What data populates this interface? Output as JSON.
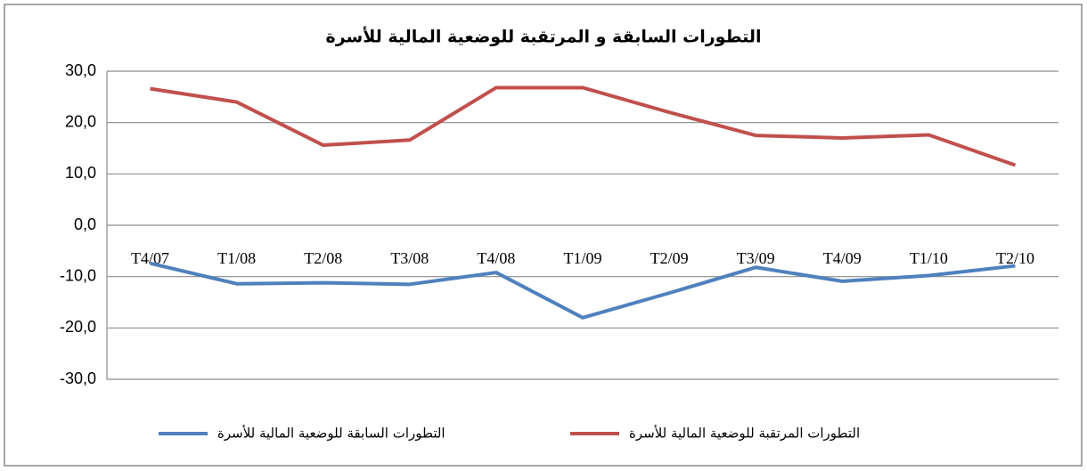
{
  "chart_data": {
    "type": "line",
    "title": "التطورات السابقة و المرتقبة للوضعية المالية للأسرة",
    "categories": [
      "T4/07",
      "T1/08",
      "T2/08",
      "T3/08",
      "T4/08",
      "T1/09",
      "T2/09",
      "T3/09",
      "T4/09",
      "T1/10",
      "T2/10"
    ],
    "series": [
      {
        "name": "التطورات السابقة للوضعية المالية للأسرة",
        "color": "#4f81bd",
        "values": [
          -7.4,
          -11.4,
          -11.2,
          -11.5,
          -9.2,
          -18.0,
          -13.2,
          -8.2,
          -10.9,
          -9.8,
          -7.9
        ]
      },
      {
        "name": "التطورات المرتقبة للوضعية المالية للأسرة",
        "color": "#c0504d",
        "values": [
          26.6,
          24.0,
          15.6,
          16.6,
          26.8,
          26.8,
          22.0,
          17.5,
          17.0,
          17.6,
          11.7
        ]
      }
    ],
    "ylim": [
      -30,
      30
    ],
    "yticks": [
      {
        "value": 30,
        "label": "30,0"
      },
      {
        "value": 20,
        "label": "20,0"
      },
      {
        "value": 10,
        "label": "10,0"
      },
      {
        "value": 0,
        "label": "0,0"
      },
      {
        "value": -10,
        "label": "-10,0"
      },
      {
        "value": -20,
        "label": "-20,0"
      },
      {
        "value": -30,
        "label": "-30,0"
      }
    ],
    "grid": true,
    "legend": "bottom"
  }
}
